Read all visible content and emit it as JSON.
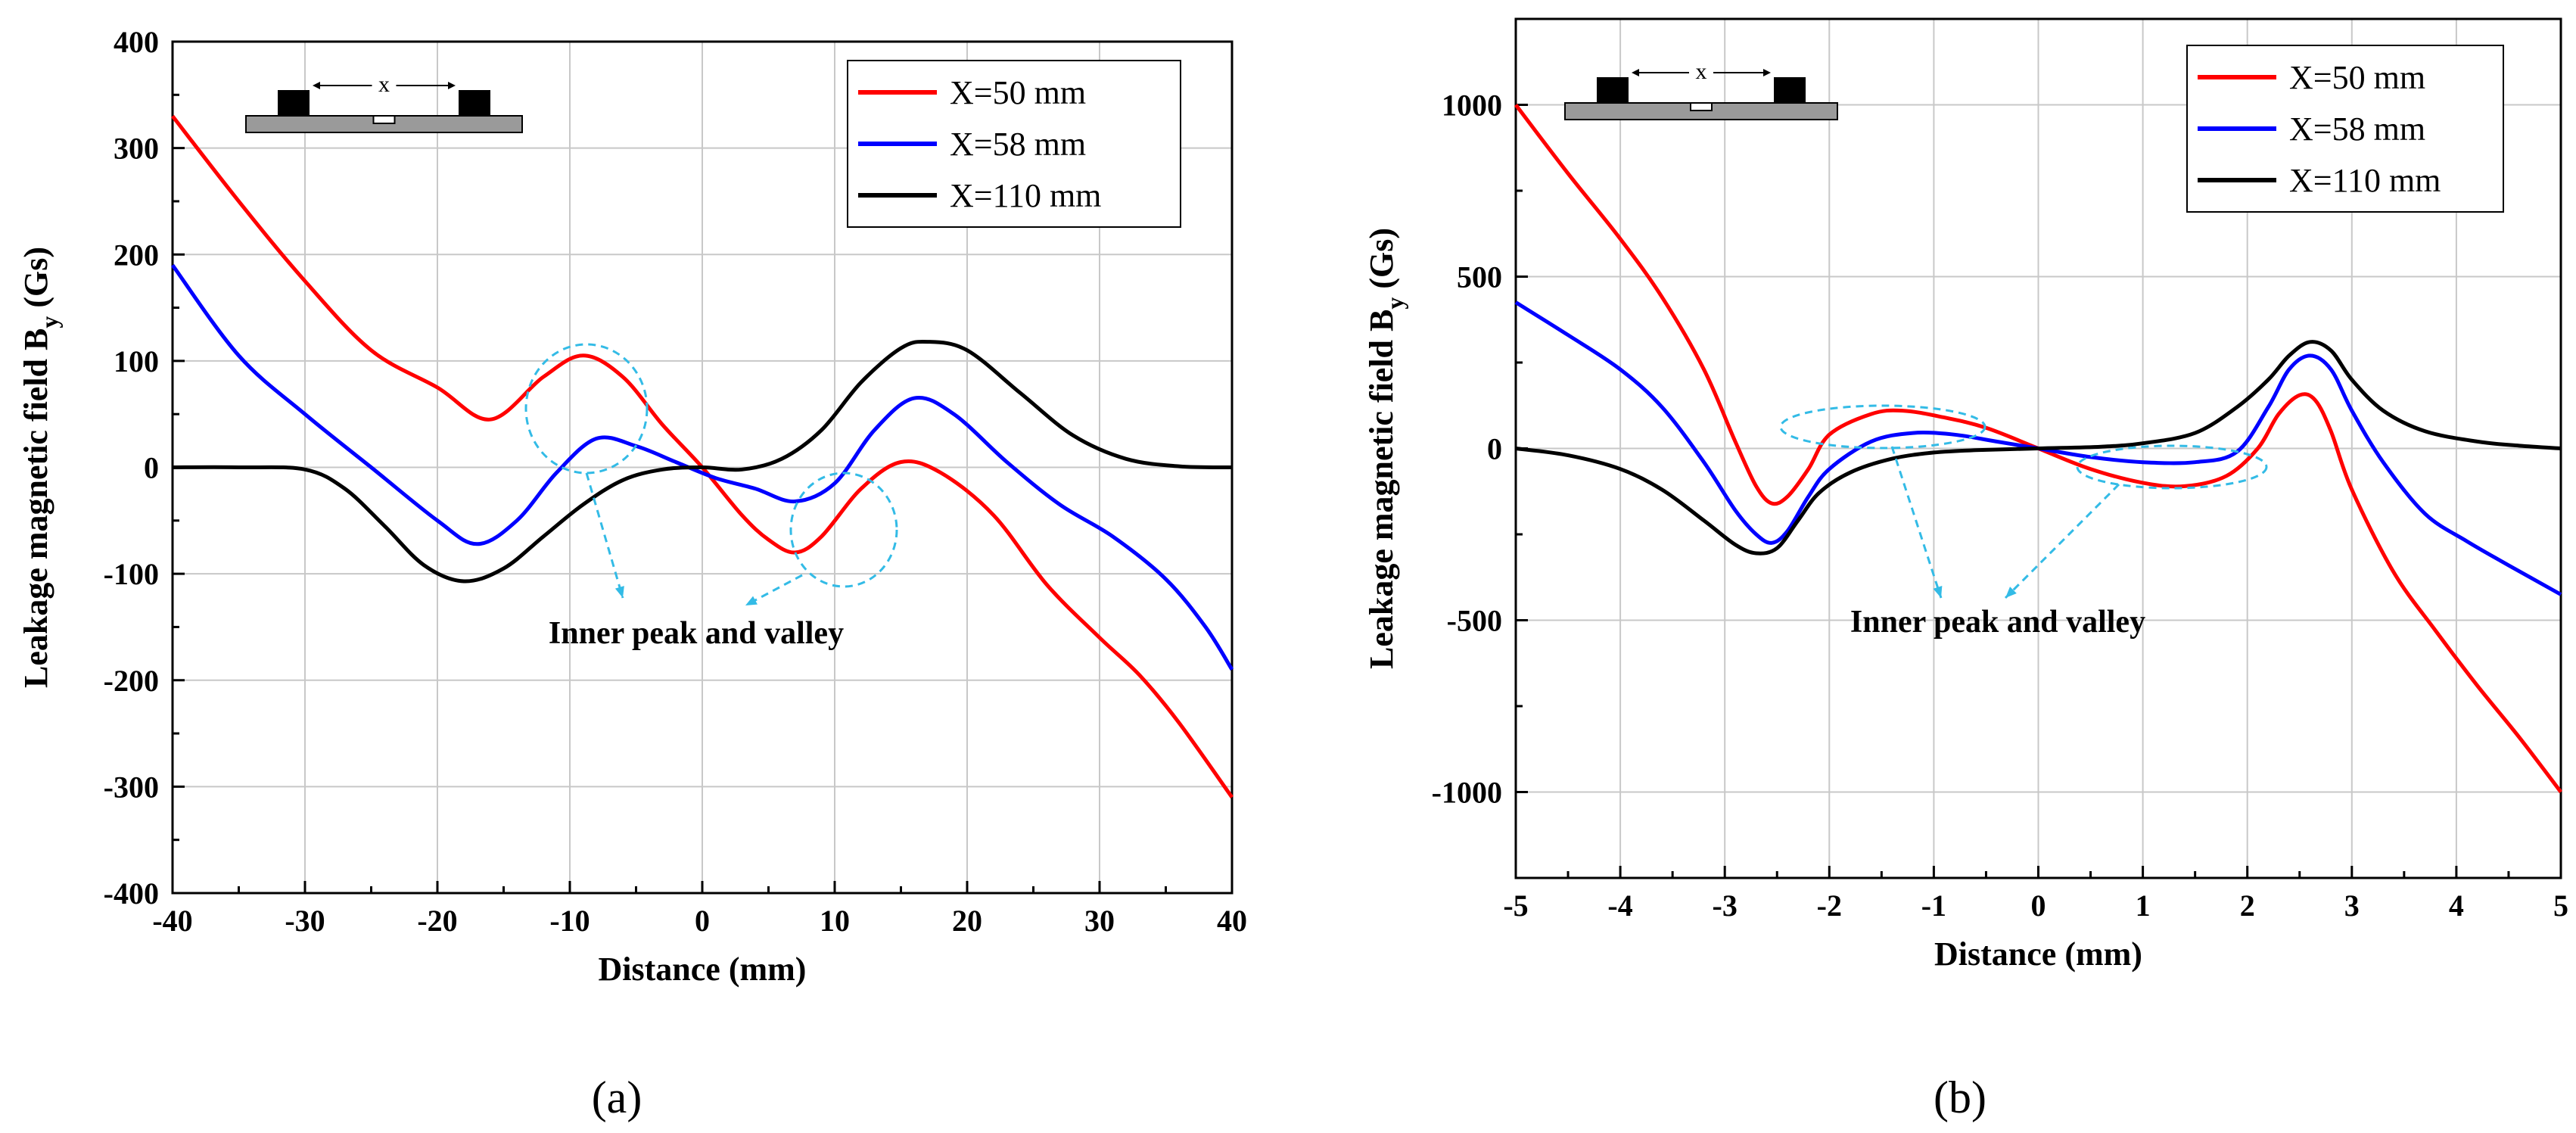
{
  "chart_data": [
    {
      "type": "line",
      "panel_label": "(a)",
      "xlabel": "Distance (mm)",
      "ylabel_main": "Leakage magnetic field B",
      "ylabel_sub": "y",
      "ylabel_unit": " (Gs)",
      "xlim": [
        -40,
        40
      ],
      "ylim": [
        -400,
        400
      ],
      "xticks": [
        -40,
        -30,
        -20,
        -10,
        0,
        10,
        20,
        30,
        40
      ],
      "yticks": [
        -400,
        -300,
        -200,
        -100,
        0,
        100,
        200,
        300,
        400
      ],
      "grid": true,
      "legend_position": "top-right",
      "annotation": "Inner peak and valley",
      "inset_label": "x",
      "series": [
        {
          "name": "X=50 mm",
          "color": "#ff0000",
          "x": [
            -40,
            -35,
            -30,
            -25,
            -20,
            -16,
            -12,
            -9,
            -6,
            -3,
            0,
            3,
            5,
            7,
            9,
            12,
            15,
            18,
            22,
            26,
            30,
            33,
            36,
            40
          ],
          "y": [
            330,
            250,
            175,
            110,
            75,
            45,
            85,
            105,
            85,
            40,
            0,
            -45,
            -68,
            -80,
            -65,
            -20,
            5,
            -5,
            -45,
            -110,
            -160,
            -195,
            -240,
            -310
          ]
        },
        {
          "name": "X=58 mm",
          "color": "#0000ff",
          "x": [
            -40,
            -35,
            -30,
            -25,
            -20,
            -17,
            -14,
            -11,
            -8,
            -5,
            -2,
            1,
            4,
            7,
            10,
            13,
            16,
            19,
            23,
            27,
            31,
            35,
            38,
            40
          ],
          "y": [
            190,
            105,
            50,
            0,
            -50,
            -72,
            -50,
            -5,
            27,
            20,
            5,
            -10,
            -20,
            -32,
            -15,
            35,
            65,
            50,
            5,
            -35,
            -65,
            -105,
            -150,
            -190
          ]
        },
        {
          "name": "X=110 mm",
          "color": "#000000",
          "x": [
            -40,
            -35,
            -30,
            -27,
            -24,
            -21,
            -18,
            -15,
            -12,
            -9,
            -6,
            -3,
            0,
            3,
            6,
            9,
            12,
            15,
            17,
            20,
            24,
            28,
            32,
            36,
            40
          ],
          "y": [
            0,
            0,
            -2,
            -20,
            -55,
            -92,
            -107,
            -95,
            -65,
            -35,
            -12,
            -2,
            0,
            -2,
            8,
            35,
            80,
            112,
            118,
            110,
            70,
            30,
            8,
            1,
            0
          ]
        }
      ]
    },
    {
      "type": "line",
      "panel_label": "(b)",
      "xlabel": "Distance (mm)",
      "ylabel_main": "Leakage magnetic field B",
      "ylabel_sub": "y",
      "ylabel_unit": " (Gs)",
      "xlim": [
        -5,
        5
      ],
      "ylim": [
        -1250,
        1250
      ],
      "xticks": [
        -5,
        -4,
        -3,
        -2,
        -1,
        0,
        1,
        2,
        3,
        4,
        5
      ],
      "yticks": [
        -1000,
        -500,
        0,
        500,
        1000
      ],
      "grid": true,
      "legend_position": "top-right",
      "annotation": "Inner peak and valley",
      "inset_label": "x",
      "series": [
        {
          "name": "X=50 mm",
          "color": "#ff0000",
          "x": [
            -5,
            -4.5,
            -4,
            -3.6,
            -3.2,
            -2.9,
            -2.7,
            -2.55,
            -2.4,
            -2.2,
            -2,
            -1.6,
            -1.3,
            -0.9,
            -0.5,
            0,
            0.5,
            1,
            1.4,
            1.8,
            2.1,
            2.3,
            2.5,
            2.65,
            2.8,
            3,
            3.4,
            3.8,
            4.2,
            4.6,
            5
          ],
          "y": [
            1000,
            800,
            610,
            440,
            230,
            20,
            -110,
            -160,
            -140,
            -60,
            40,
            100,
            110,
            90,
            60,
            0,
            -60,
            -100,
            -110,
            -80,
            0,
            100,
            155,
            140,
            50,
            -120,
            -360,
            -530,
            -690,
            -840,
            -1000
          ]
        },
        {
          "name": "X=58 mm",
          "color": "#0000ff",
          "x": [
            -5,
            -4.5,
            -4,
            -3.6,
            -3.2,
            -2.9,
            -2.7,
            -2.55,
            -2.4,
            -2.2,
            -2,
            -1.6,
            -1.2,
            -0.8,
            -0.4,
            0,
            0.5,
            1,
            1.5,
            1.9,
            2.2,
            2.4,
            2.6,
            2.8,
            3,
            3.3,
            3.7,
            4.1,
            4.5,
            5
          ],
          "y": [
            425,
            330,
            230,
            120,
            -40,
            -180,
            -250,
            -275,
            -240,
            -140,
            -60,
            20,
            45,
            40,
            20,
            0,
            -25,
            -40,
            -40,
            -10,
            120,
            230,
            270,
            230,
            110,
            -40,
            -190,
            -270,
            -340,
            -425
          ]
        },
        {
          "name": "X=110 mm",
          "color": "#000000",
          "x": [
            -5,
            -4.5,
            -4,
            -3.6,
            -3.2,
            -2.9,
            -2.7,
            -2.5,
            -2.3,
            -2.1,
            -1.8,
            -1.4,
            -1,
            -0.6,
            0,
            0.6,
            1,
            1.5,
            1.9,
            2.2,
            2.4,
            2.6,
            2.8,
            3,
            3.3,
            3.7,
            4.2,
            4.6,
            5
          ],
          "y": [
            0,
            -20,
            -60,
            -120,
            -210,
            -280,
            -305,
            -290,
            -210,
            -130,
            -70,
            -30,
            -12,
            -5,
            0,
            5,
            15,
            45,
            120,
            200,
            270,
            310,
            285,
            200,
            110,
            50,
            20,
            8,
            0
          ]
        }
      ]
    }
  ]
}
